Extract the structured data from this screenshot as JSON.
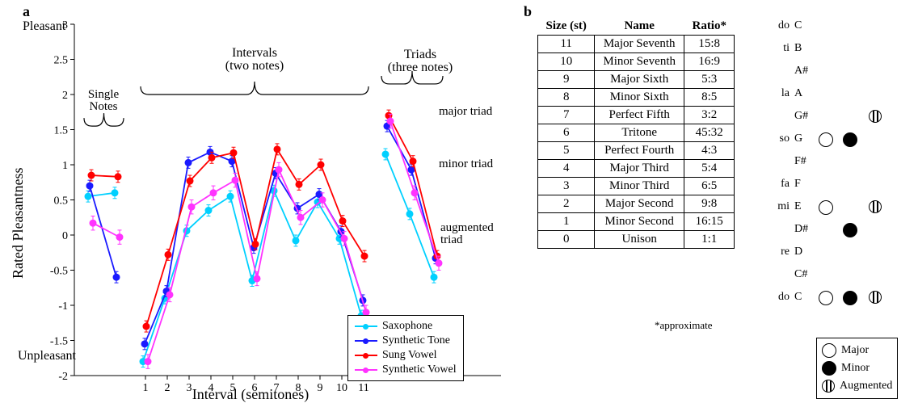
{
  "panels": {
    "a_label": "a",
    "b_label": "b"
  },
  "chart": {
    "type": "line-scatter",
    "y_axis": {
      "label": "Rated Pleasantness",
      "min": -2,
      "max": 3,
      "tick_step": 0.5,
      "top_text": "Pleasant",
      "bottom_text": "Unpleasant",
      "label_fontsize": 18,
      "tick_fontsize": 14
    },
    "x_axis": {
      "label": "Interval (semitones)",
      "ticks": [
        1,
        2,
        3,
        4,
        5,
        6,
        7,
        8,
        9,
        10,
        11
      ],
      "label_fontsize": 18,
      "tick_fontsize": 14
    },
    "segments": {
      "single_notes": {
        "x": [
          "N1",
          "N2"
        ],
        "label": "Single\nNotes"
      },
      "intervals": {
        "x": [
          1,
          2,
          3,
          4,
          5,
          6,
          7,
          8,
          9,
          10,
          11
        ],
        "label": "Intervals\n(two notes)"
      },
      "triads": {
        "x": [
          "Maj",
          "Min",
          "Aug"
        ],
        "label": "Triads\n(three notes)",
        "point_labels": [
          "major triad",
          "minor triad",
          "augmented\ntriad"
        ]
      }
    },
    "series": [
      {
        "name": "Saxophone",
        "color": "#00d0ff",
        "marker": "circle-filled",
        "single_notes_y": [
          0.55,
          0.6
        ],
        "intervals_y": [
          -1.8,
          -0.9,
          0.06,
          0.35,
          0.55,
          -0.65,
          0.63,
          -0.08,
          0.47,
          -0.05,
          -1.15
        ],
        "triads_y": [
          1.15,
          0.3,
          -0.6
        ],
        "err": 0.08
      },
      {
        "name": "Synthetic Tone",
        "color": "#1a1aff",
        "marker": "circle-filled",
        "single_notes_y": [
          0.7,
          -0.6
        ],
        "intervals_y": [
          -1.55,
          -0.8,
          1.03,
          1.18,
          1.05,
          -0.18,
          0.88,
          0.38,
          0.58,
          0.05,
          -0.93
        ],
        "triads_y": [
          1.55,
          0.93,
          -0.33
        ],
        "err": 0.08
      },
      {
        "name": "Sung Vowel",
        "color": "#ff0000",
        "marker": "circle-filled",
        "single_notes_y": [
          0.85,
          0.83
        ],
        "intervals_y": [
          -1.3,
          -0.28,
          0.77,
          1.1,
          1.17,
          -0.13,
          1.22,
          0.72,
          1.0,
          0.2,
          -0.3
        ],
        "triads_y": [
          1.7,
          1.05,
          -0.3
        ],
        "err": 0.08
      },
      {
        "name": "Synthetic Vowel",
        "color": "#ff33ff",
        "marker": "circle-filled",
        "single_notes_y": [
          0.17,
          -0.03
        ],
        "intervals_y": [
          -1.8,
          -0.85,
          0.4,
          0.6,
          0.78,
          -0.62,
          0.93,
          0.25,
          0.5,
          -0.05,
          -1.1
        ],
        "triads_y": [
          1.62,
          0.6,
          -0.4
        ],
        "err": 0.1
      }
    ],
    "legend_fontsize": 14,
    "line_width": 1.8,
    "marker_size": 4
  },
  "table": {
    "columns": [
      "Size (st)",
      "Name",
      "Ratio*"
    ],
    "rows": [
      [
        "11",
        "Major Seventh",
        "15:8"
      ],
      [
        "10",
        "Minor Seventh",
        "16:9"
      ],
      [
        "9",
        "Major Sixth",
        "5:3"
      ],
      [
        "8",
        "Minor Sixth",
        "8:5"
      ],
      [
        "7",
        "Perfect Fifth",
        "3:2"
      ],
      [
        "6",
        "Tritone",
        "45:32"
      ],
      [
        "5",
        "Perfect Fourth",
        "4:3"
      ],
      [
        "4",
        "Major Third",
        "5:4"
      ],
      [
        "3",
        "Minor Third",
        "6:5"
      ],
      [
        "2",
        "Major Second",
        "9:8"
      ],
      [
        "1",
        "Minor Second",
        "16:15"
      ],
      [
        "0",
        "Unison",
        "1:1"
      ]
    ],
    "footnote": "*approximate"
  },
  "triad_diagram": {
    "notes": [
      {
        "solfege": "do",
        "letter": "C"
      },
      {
        "solfege": "ti",
        "letter": "B"
      },
      {
        "solfege": "",
        "letter": "A#"
      },
      {
        "solfege": "la",
        "letter": "A"
      },
      {
        "solfege": "",
        "letter": "G#"
      },
      {
        "solfege": "so",
        "letter": "G"
      },
      {
        "solfege": "",
        "letter": "F#"
      },
      {
        "solfege": "fa",
        "letter": "F"
      },
      {
        "solfege": "mi",
        "letter": "E"
      },
      {
        "solfege": "",
        "letter": "D#"
      },
      {
        "solfege": "re",
        "letter": "D"
      },
      {
        "solfege": "",
        "letter": "C#"
      },
      {
        "solfege": "do",
        "letter": "C"
      }
    ],
    "triads": {
      "Major": {
        "marker": "open",
        "notes": [
          "C",
          "E",
          "G"
        ]
      },
      "Minor": {
        "marker": "filled",
        "notes": [
          "C",
          "D#",
          "G"
        ]
      },
      "Augmented": {
        "marker": "aug",
        "notes": [
          "C",
          "E",
          "G#"
        ]
      }
    },
    "legend_labels": [
      "Major",
      "Minor",
      "Augmented"
    ]
  },
  "colors": {
    "background": "#ffffff",
    "axis": "#000000",
    "text": "#000000"
  }
}
